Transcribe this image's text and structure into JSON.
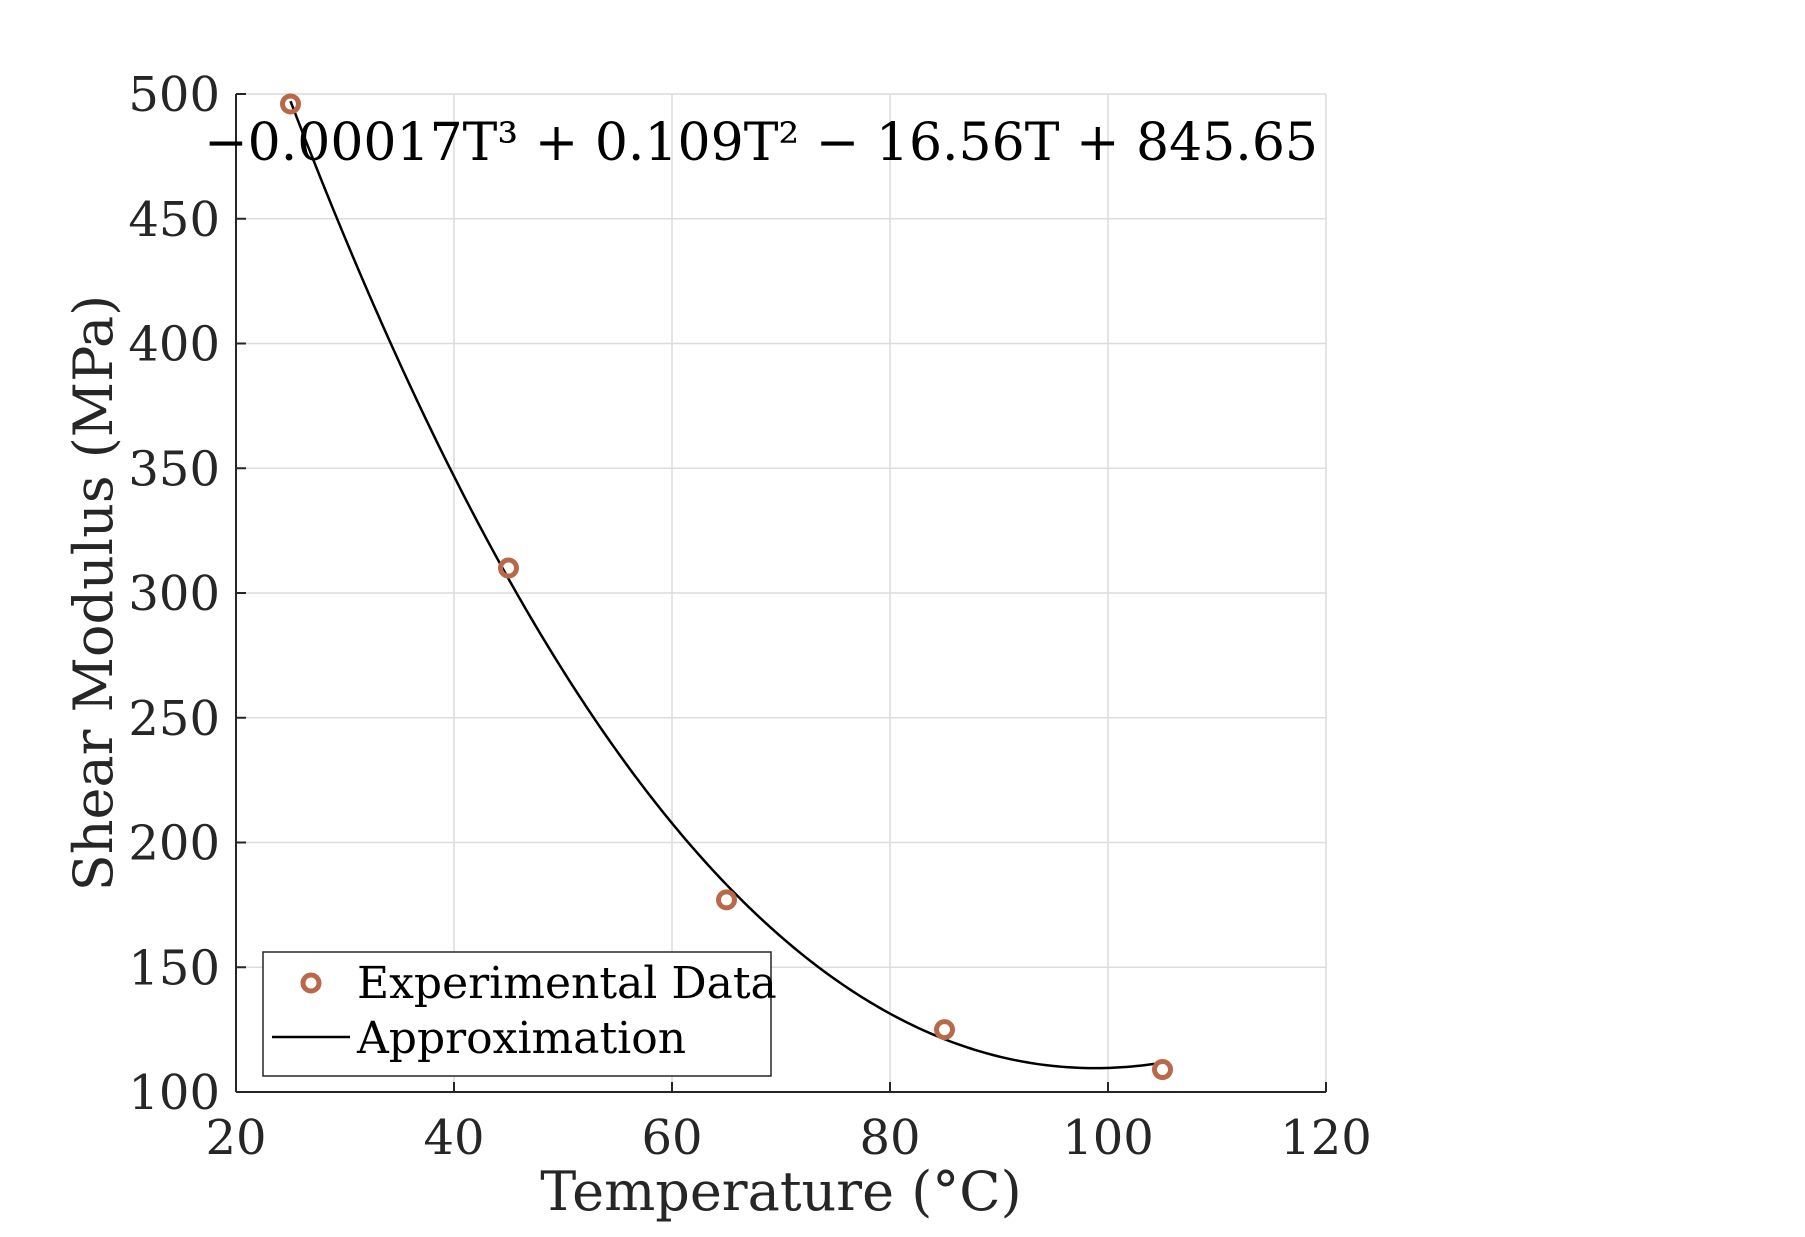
{
  "chart_data": {
    "type": "scatter",
    "x_ticks": [
      20,
      40,
      60,
      80,
      100,
      120
    ],
    "y_ticks": [
      100,
      150,
      200,
      250,
      300,
      350,
      400,
      450,
      500
    ],
    "xlim": [
      20,
      120
    ],
    "ylim": [
      100,
      500
    ],
    "xlabel": "Temperature (°C)",
    "ylabel": "Shear Modulus (MPa)",
    "annotation": "−0.00017T³ + 0.109T² − 16.56T + 845.65",
    "grid": true,
    "legend_position": "bottom-left",
    "series": [
      {
        "name": "Experimental Data",
        "kind": "scatter",
        "marker": "circle-open",
        "color": "#b8694a",
        "x": [
          25,
          45,
          65,
          85,
          105
        ],
        "y": [
          496,
          310,
          177,
          125,
          109
        ]
      },
      {
        "name": "Approximation",
        "kind": "line",
        "color": "#000000",
        "x_range": [
          25,
          105
        ],
        "coefficients": [
          -0.00017,
          0.109,
          -16.56,
          845.65
        ]
      }
    ]
  }
}
